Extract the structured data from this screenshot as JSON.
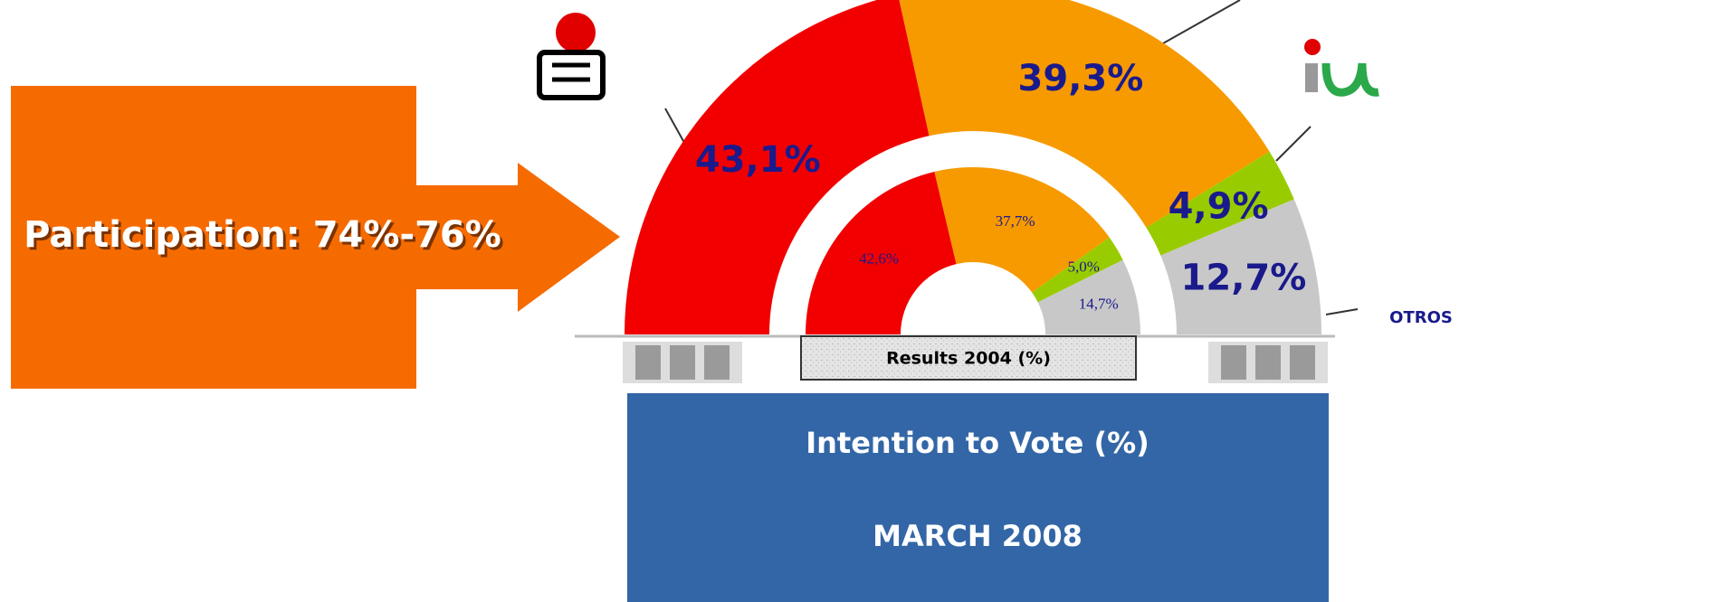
{
  "callout": "Participation: 74%-76%",
  "chart_data": [
    {
      "type": "pie",
      "title": "Intention to Vote (%)",
      "subtitle": "MARCH 2008",
      "categories": [
        null,
        null,
        null,
        "OTROS"
      ],
      "values": [
        43.1,
        39.3,
        4.9,
        12.7
      ],
      "value_labels": [
        "43,1%",
        "39,3%",
        "4,9%",
        "12,7%"
      ],
      "colors": [
        "#f20000",
        "#f79a00",
        "#99cc00",
        "#c8c8c8"
      ]
    },
    {
      "type": "pie",
      "title": "Results 2004 (%)",
      "values": [
        42.6,
        37.7,
        5.0,
        14.7
      ],
      "value_labels": [
        "42,6%",
        "37,7%",
        "5,0%",
        "14,7%"
      ],
      "colors": [
        "#f20000",
        "#f79a00",
        "#99cc00",
        "#c8c8c8"
      ]
    }
  ]
}
